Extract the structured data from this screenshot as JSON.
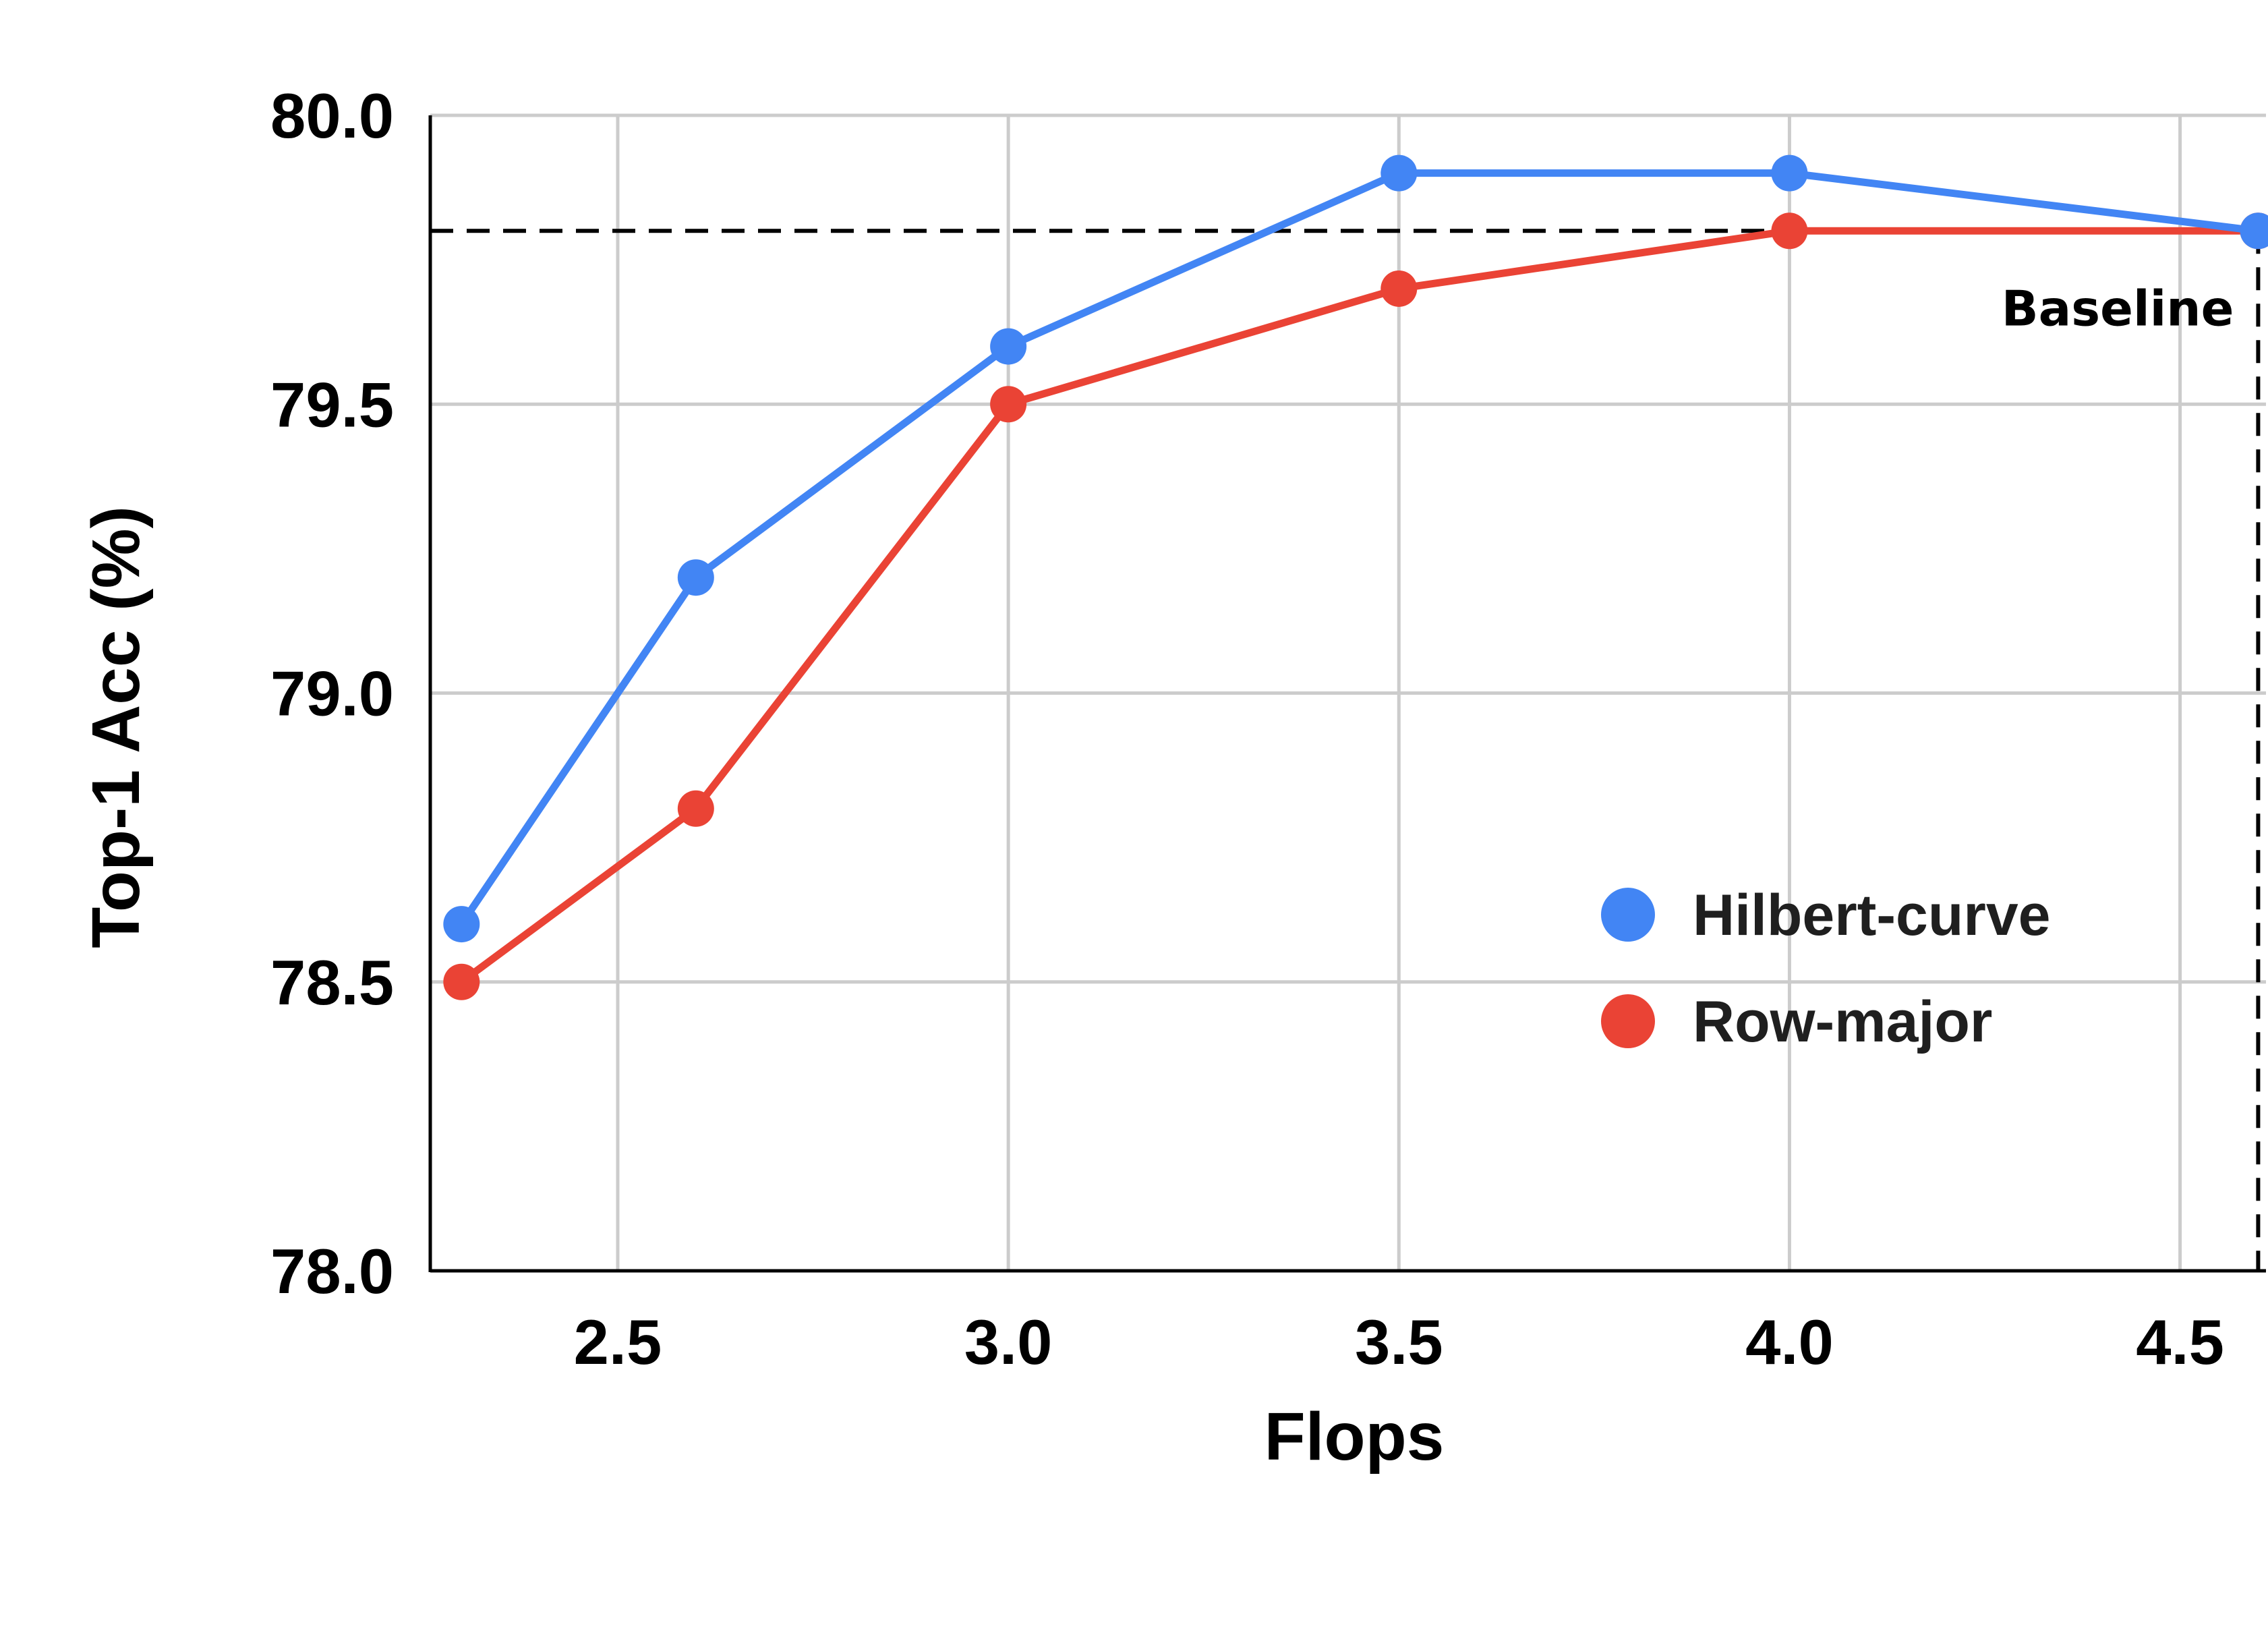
{
  "chart_data": {
    "type": "line",
    "xlabel": "Flops",
    "ylabel": "Top-1 Acc (%)",
    "xlim": [
      2.26,
      4.61
    ],
    "ylim": [
      78.0,
      80.0
    ],
    "xticks": [
      2.5,
      3.0,
      3.5,
      4.0,
      4.5
    ],
    "xtick_labels": [
      "2.5",
      "3.0",
      "3.5",
      "4.0",
      "4.5"
    ],
    "yticks": [
      78.0,
      78.5,
      79.0,
      79.5,
      80.0
    ],
    "ytick_labels": [
      "78.0",
      "78.5",
      "79.0",
      "79.5",
      "80.0"
    ],
    "grid": true,
    "legend_position": "bottom-right",
    "series": [
      {
        "name": "Hilbert-curve",
        "color": "#4285f4",
        "x": [
          2.3,
          2.6,
          3.0,
          3.5,
          4.0,
          4.6
        ],
        "y": [
          78.6,
          79.2,
          79.6,
          79.9,
          79.9,
          79.8
        ]
      },
      {
        "name": "Row-major",
        "color": "#ea4335",
        "x": [
          2.3,
          2.6,
          3.0,
          3.5,
          4.0,
          4.6
        ],
        "y": [
          78.5,
          78.8,
          79.5,
          79.7,
          79.8,
          79.8
        ]
      }
    ],
    "baseline": {
      "label": "Baseline",
      "x": 4.6,
      "y": 79.8
    }
  }
}
